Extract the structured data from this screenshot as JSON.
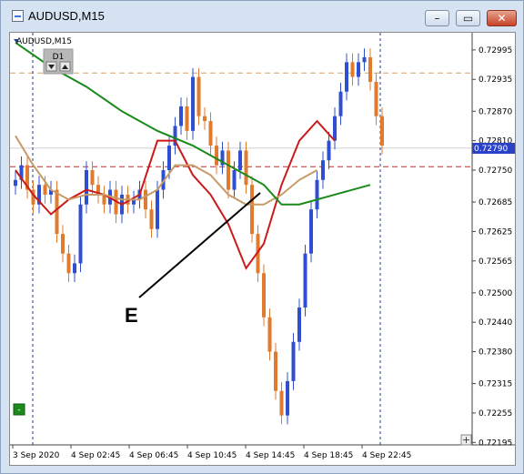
{
  "window": {
    "title": "AUDUSD,M15",
    "buttons": [
      "minimize",
      "restore",
      "close"
    ]
  },
  "chart_overlay": {
    "symbol_label": "AUDUSD,M15",
    "period_label": "D1",
    "annotation_label": "E",
    "price_tag": "0.72790",
    "zoom_in_glyph": "+",
    "one_click_glyph": "-"
  },
  "colors": {
    "bull": "#2f4fd0",
    "bear": "#e07a2e",
    "ma_fast": "#cc1a1a",
    "ma_mid": "#c89a66",
    "ma_slow": "#1a8a1a",
    "price_tag_bg": "#2a42c8"
  },
  "chart_data": {
    "type": "line",
    "xlabel": "",
    "ylabel": "",
    "ylim": [
      0.7219,
      0.7303
    ],
    "y_ticks": [
      "0.72995",
      "0.72935",
      "0.72870",
      "0.72810",
      "0.72750",
      "0.72685",
      "0.72625",
      "0.72565",
      "0.72500",
      "0.72440",
      "0.72380",
      "0.72315",
      "0.72255",
      "0.72195"
    ],
    "x_ticks": [
      "3 Sep 2020",
      "4 Sep 02:45",
      "4 Sep 06:45",
      "4 Sep 10:45",
      "4 Sep 14:45",
      "4 Sep 18:45",
      "4 Sep 22:45"
    ],
    "grid": false,
    "current_price": 0.7279,
    "horizontal_lines": [
      {
        "price": 0.72948,
        "style": "dashed",
        "color": "#d9a066"
      },
      {
        "price": 0.72757,
        "style": "dashed",
        "color": "#b83030"
      },
      {
        "price": 0.72795,
        "style": "solid",
        "color": "#d0d0d0"
      }
    ],
    "close_series": [
      0.7273,
      0.7276,
      0.7271,
      0.7268,
      0.7272,
      0.727,
      0.7271,
      0.7262,
      0.7258,
      0.7254,
      0.7256,
      0.7268,
      0.7275,
      0.7272,
      0.727,
      0.7268,
      0.7271,
      0.7266,
      0.727,
      0.7268,
      0.7269,
      0.7271,
      0.7267,
      0.7263,
      0.7271,
      0.7275,
      0.728,
      0.7284,
      0.7288,
      0.7283,
      0.7294,
      0.7286,
      0.7285,
      0.728,
      0.7276,
      0.7279,
      0.7271,
      0.7275,
      0.7279,
      0.7272,
      0.7262,
      0.7254,
      0.7245,
      0.7238,
      0.723,
      0.7225,
      0.7232,
      0.724,
      0.7247,
      0.7258,
      0.7267,
      0.7273,
      0.7277,
      0.7281,
      0.7286,
      0.7291,
      0.7297,
      0.7294,
      0.7297,
      0.7298,
      0.7293,
      0.7286,
      0.728
    ],
    "series": [
      {
        "values": [
          0.7275,
          0.727,
          0.7266,
          0.7269,
          0.7271,
          0.727,
          0.7268,
          0.727,
          0.7281,
          0.7281,
          0.7274,
          0.727,
          0.7264,
          0.7255,
          0.726,
          0.7272,
          0.7281,
          0.7285,
          0.7281
        ],
        "x_index": [
          0,
          3,
          6,
          9,
          12,
          15,
          18,
          21,
          24,
          27,
          30,
          33,
          36,
          39,
          42,
          45,
          48,
          51,
          54
        ]
      },
      {
        "values": [
          0.7282,
          0.7276,
          0.7271,
          0.7269,
          0.727,
          0.727,
          0.7269,
          0.7269,
          0.7271,
          0.7276,
          0.7276,
          0.7274,
          0.727,
          0.7268,
          0.7268,
          0.727,
          0.7273,
          0.7275
        ],
        "x_index": [
          0,
          3,
          6,
          9,
          12,
          15,
          18,
          21,
          24,
          27,
          30,
          33,
          36,
          39,
          42,
          45,
          48,
          51
        ]
      },
      {
        "values": [
          0.7301,
          0.7296,
          0.7292,
          0.7287,
          0.7283,
          0.728,
          0.7276,
          0.7272,
          0.7268,
          0.7268,
          0.727,
          0.7272
        ],
        "x_index": [
          0,
          6,
          12,
          18,
          24,
          30,
          36,
          42,
          45,
          48,
          54,
          60
        ]
      }
    ]
  }
}
